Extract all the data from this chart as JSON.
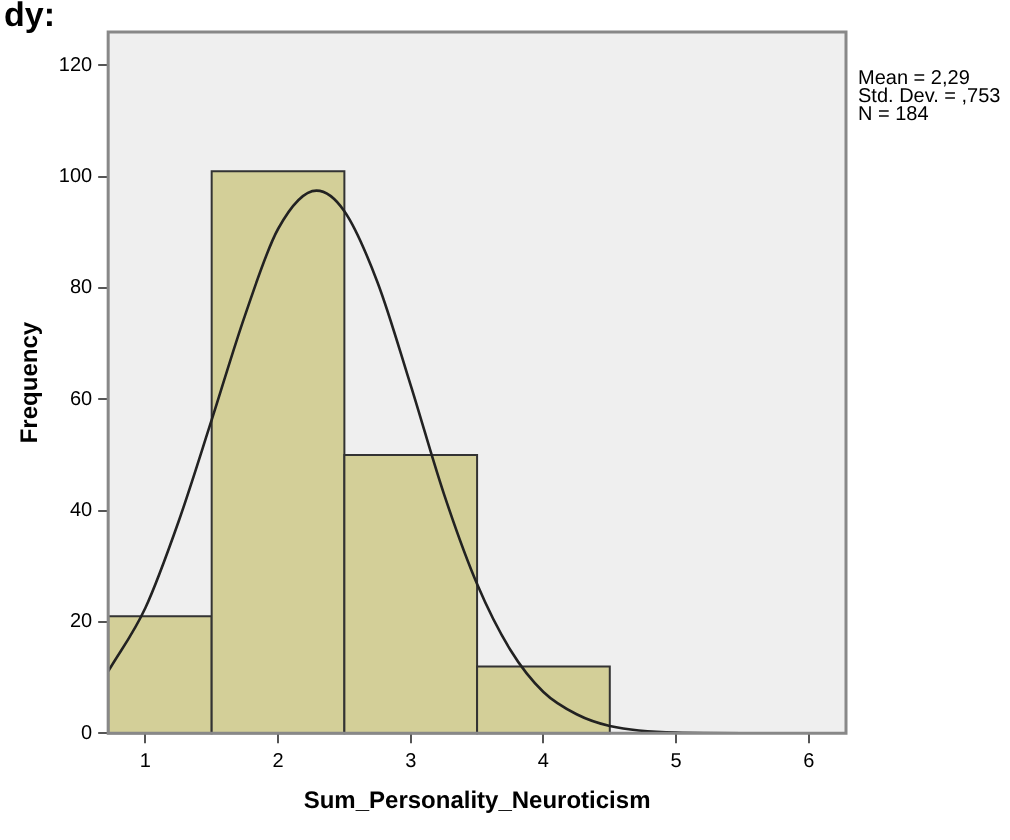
{
  "chart_data": {
    "type": "histogram",
    "xlabel": "Sum_Personality_Neuroticism",
    "ylabel": "Frequency",
    "bins": [
      0.72,
      1.5,
      2.5,
      3.5,
      4.5
    ],
    "values": [
      21,
      101,
      50,
      12
    ],
    "color": "#d3cf98",
    "xlim": [
      0.72,
      6.28
    ],
    "xticks": [
      1,
      2,
      3,
      4,
      5,
      6
    ],
    "ylim": [
      0,
      126
    ],
    "yticks": [
      0,
      20,
      40,
      60,
      80,
      100,
      120
    ],
    "legend": false,
    "series": [
      {
        "type": "line",
        "color": "#222222",
        "x": [
          0.72,
          1.0,
          1.25,
          1.5,
          1.75,
          2.0,
          2.29,
          2.5,
          2.75,
          3.0,
          3.25,
          3.5,
          3.75,
          4.0,
          4.25,
          4.5,
          5.0,
          5.5,
          6.28
        ],
        "values": [
          11.1,
          22.5,
          38,
          56.3,
          75,
          90.6,
          97.5,
          93.8,
          81,
          62.5,
          43,
          26.8,
          15,
          7.4,
          3.4,
          1.3,
          0.1,
          0,
          0
        ]
      }
    ],
    "annotations": [
      "dy:",
      "Mean = 2,29",
      "Std. Dev. = ,753",
      "N = 184"
    ]
  }
}
